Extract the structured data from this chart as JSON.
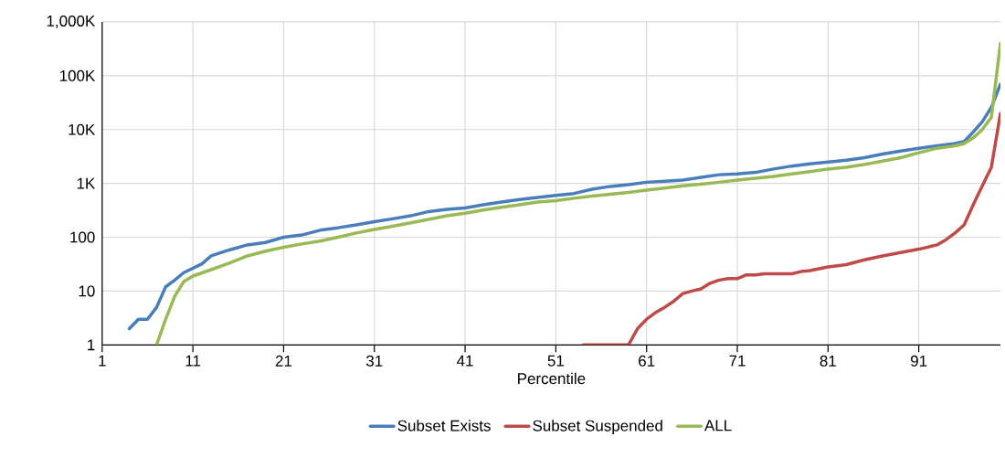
{
  "chart_data": {
    "type": "line",
    "xlabel": "Percentile",
    "log": "y",
    "grid": true,
    "legend": "bottom",
    "line_style": "solid",
    "marker": "none",
    "xlim": [
      1,
      100
    ],
    "xticks": [
      1,
      11,
      21,
      31,
      41,
      51,
      61,
      71,
      81,
      91
    ],
    "ylim": [
      1,
      1000000
    ],
    "yticks": [
      1,
      10,
      100,
      {
        "value": 1000,
        "label": "1K"
      },
      {
        "value": 10000,
        "label": "10K"
      },
      {
        "value": 100000,
        "label": "100K"
      },
      {
        "value": 1000000,
        "label": "1,000K"
      }
    ],
    "series": [
      {
        "name": "Subset Exists",
        "color": "#4a7ebb",
        "x": [
          4,
          5,
          6,
          7,
          8,
          9,
          10,
          12,
          13,
          15,
          17,
          19,
          21,
          23,
          25,
          27,
          29,
          31,
          33,
          35,
          37,
          39,
          41,
          43,
          45,
          47,
          49,
          51,
          53,
          55,
          57,
          59,
          61,
          63,
          65,
          67,
          69,
          71,
          73,
          75,
          77,
          79,
          81,
          83,
          85,
          87,
          89,
          91,
          93,
          95,
          96,
          97,
          98,
          99,
          100
        ],
        "values": [
          2,
          3,
          3,
          5,
          12,
          16,
          22,
          32,
          45,
          58,
          72,
          80,
          100,
          110,
          135,
          150,
          170,
          195,
          220,
          250,
          300,
          330,
          350,
          400,
          450,
          500,
          550,
          600,
          650,
          780,
          880,
          950,
          1050,
          1100,
          1150,
          1300,
          1450,
          1500,
          1600,
          1850,
          2100,
          2300,
          2500,
          2700,
          3000,
          3500,
          4000,
          4500,
          5000,
          5500,
          6000,
          9000,
          14000,
          26000,
          70000
        ]
      },
      {
        "name": "Subset Suspended",
        "color": "#be4b48",
        "x": [
          54,
          59,
          60,
          61,
          62,
          63,
          64,
          65,
          66,
          67,
          68,
          69,
          70,
          71,
          72,
          73,
          74,
          77,
          78,
          79,
          81,
          83,
          85,
          87,
          89,
          91,
          93,
          94,
          95,
          96,
          97,
          98,
          99,
          100
        ],
        "values": [
          1,
          1,
          2,
          3,
          4,
          5,
          6.5,
          9,
          10,
          11,
          14,
          16,
          17,
          17,
          20,
          20,
          21,
          21,
          23,
          24,
          28,
          31,
          38,
          45,
          52,
          60,
          72,
          90,
          120,
          170,
          400,
          900,
          2000,
          20000
        ]
      },
      {
        "name": "ALL",
        "color": "#98b954",
        "x": [
          7,
          8,
          9,
          10,
          11,
          13,
          15,
          17,
          19,
          21,
          23,
          25,
          27,
          29,
          31,
          33,
          35,
          37,
          39,
          41,
          43,
          45,
          47,
          49,
          51,
          53,
          55,
          57,
          59,
          61,
          63,
          65,
          67,
          69,
          71,
          73,
          75,
          77,
          79,
          81,
          83,
          85,
          87,
          89,
          91,
          93,
          95,
          96,
          97,
          98,
          99,
          100
        ],
        "values": [
          1,
          3,
          8,
          15,
          19,
          25,
          33,
          45,
          55,
          65,
          75,
          85,
          100,
          120,
          140,
          160,
          185,
          215,
          250,
          280,
          320,
          360,
          400,
          450,
          480,
          530,
          580,
          630,
          680,
          750,
          820,
          900,
          970,
          1050,
          1150,
          1250,
          1350,
          1500,
          1650,
          1850,
          2000,
          2250,
          2600,
          3000,
          3700,
          4500,
          5000,
          5500,
          7000,
          10000,
          17000,
          400000
        ]
      }
    ]
  }
}
